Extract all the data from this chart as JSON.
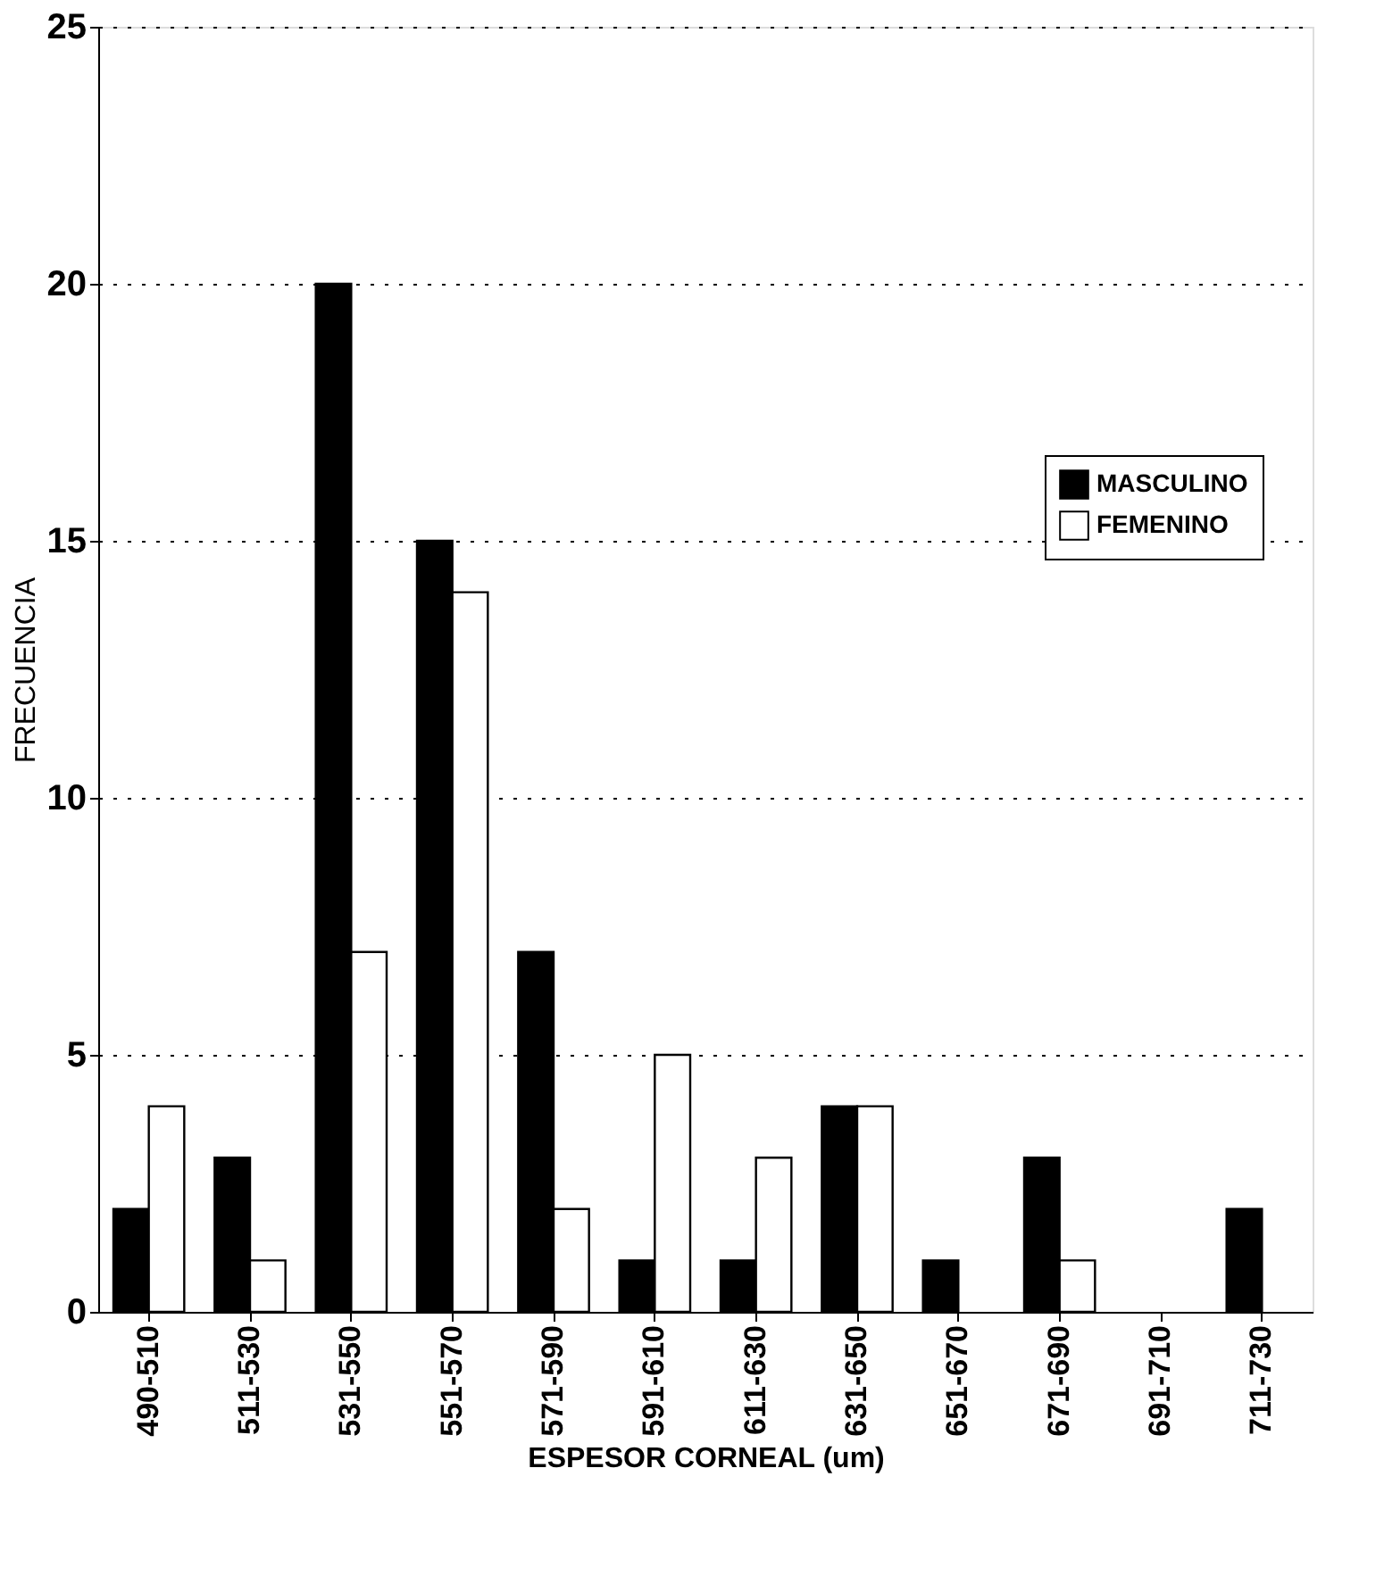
{
  "chart_data": {
    "type": "bar",
    "xlabel": "ESPESOR CORNEAL (um)",
    "ylabel": "FRECUENCIA",
    "categories": [
      "490-510",
      "511-530",
      "531-550",
      "551-570",
      "571-590",
      "591-610",
      "611-630",
      "631-650",
      "651-670",
      "671-690",
      "691-710",
      "711-730"
    ],
    "series": [
      {
        "name": "MASCULINO",
        "color": "#000000",
        "values": [
          2,
          3,
          20,
          15,
          7,
          1,
          1,
          4,
          1,
          3,
          null,
          2
        ]
      },
      {
        "name": "FEMENINO",
        "color": "#ffffff",
        "values": [
          4,
          1,
          7,
          14,
          2,
          5,
          3,
          4,
          null,
          1,
          null,
          null
        ]
      }
    ],
    "ylim": [
      0,
      25
    ],
    "yticks": [
      0,
      5,
      10,
      15,
      20,
      25
    ],
    "grid": "y",
    "legend": "right"
  }
}
